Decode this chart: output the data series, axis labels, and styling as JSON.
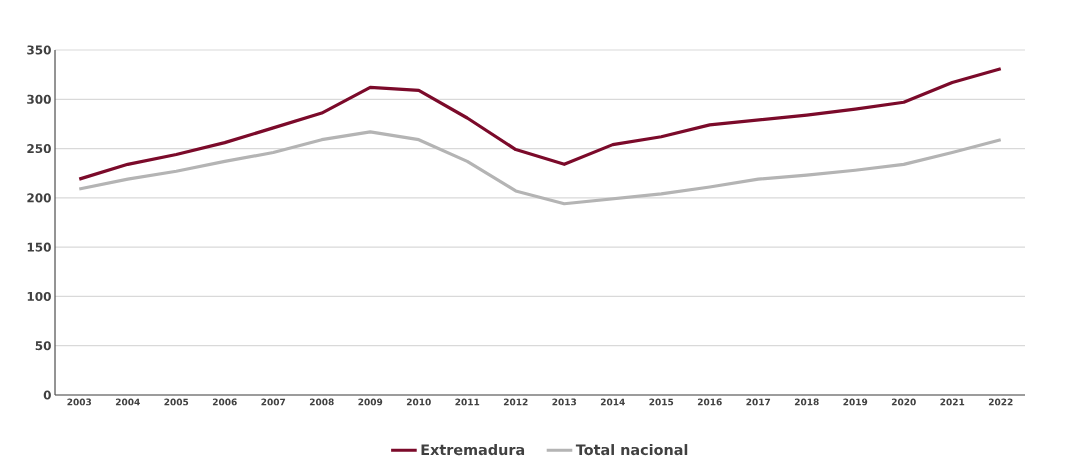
{
  "chart_data": {
    "type": "line",
    "categories": [
      "2003",
      "2004",
      "2005",
      "2006",
      "2007",
      "2008",
      "2009",
      "2010",
      "2011",
      "2012",
      "2013",
      "2014",
      "2015",
      "2016",
      "2017",
      "2018",
      "2019",
      "2020",
      "2021",
      "2022"
    ],
    "series": [
      {
        "name": "Extremadura",
        "color": "#7b0a2a",
        "values": [
          219,
          234,
          244,
          256,
          271,
          286,
          312,
          309,
          281,
          249,
          234,
          254,
          262,
          274,
          279,
          284,
          290,
          297,
          317,
          331
        ]
      },
      {
        "name": "Total nacional",
        "color": "#b4b4b4",
        "values": [
          209,
          219,
          227,
          237,
          246,
          259,
          267,
          259,
          237,
          207,
          194,
          199,
          204,
          211,
          219,
          223,
          228,
          234,
          246,
          259
        ]
      }
    ],
    "ylim": [
      0,
      350
    ],
    "yticks": [
      0,
      50,
      100,
      150,
      200,
      250,
      300,
      350
    ],
    "grid": "y",
    "legend": "bottom",
    "marker": "none",
    "line_style": "solid"
  }
}
